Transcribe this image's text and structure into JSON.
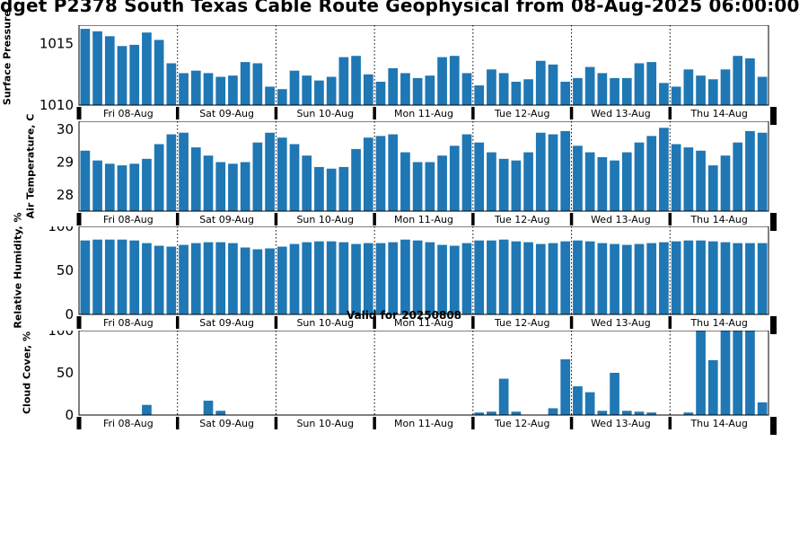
{
  "figure": {
    "title": "dget P2378 South Texas Cable Route Geophysical from 08-Aug-2025 06:00:00",
    "annotation": "Valid for 20250808",
    "bar_color": "#1f77b4"
  },
  "chart_data": [
    {
      "type": "bar",
      "title": "",
      "xlabel": "",
      "ylabel": "Surface Pressure,",
      "ylim": [
        1010,
        1016.5
      ],
      "yticks": [
        1010,
        1015
      ],
      "categories": [
        "Fri 08-Aug",
        "Sat 09-Aug",
        "Sun 10-Aug",
        "Mon 11-Aug",
        "Tue 12-Aug",
        "Wed 13-Aug",
        "Thu 14-Aug"
      ],
      "values": [
        1016.2,
        1016.0,
        1015.6,
        1014.8,
        1014.9,
        1015.9,
        1015.3,
        1013.4,
        1012.6,
        1012.8,
        1012.6,
        1012.3,
        1012.4,
        1013.5,
        1013.4,
        1011.5,
        1011.3,
        1012.8,
        1012.4,
        1012.0,
        1012.3,
        1013.9,
        1014.0,
        1012.5,
        1011.9,
        1013.0,
        1012.6,
        1012.2,
        1012.4,
        1013.9,
        1014.0,
        1012.6,
        1011.6,
        1012.9,
        1012.6,
        1011.9,
        1012.1,
        1013.6,
        1013.3,
        1011.9,
        1012.2,
        1013.1,
        1012.6,
        1012.2,
        1012.2,
        1013.4,
        1013.5,
        1011.8,
        1011.5,
        1012.9,
        1012.4,
        1012.1,
        1012.9,
        1014.0,
        1013.8,
        1012.3
      ]
    },
    {
      "type": "bar",
      "title": "",
      "xlabel": "",
      "ylabel": "Air Temperature, C",
      "ylim": [
        27.5,
        30.25
      ],
      "yticks": [
        28,
        29,
        30
      ],
      "categories": [
        "Fri 08-Aug",
        "Sat 09-Aug",
        "Sun 10-Aug",
        "Mon 11-Aug",
        "Tue 12-Aug",
        "Wed 13-Aug",
        "Thu 14-Aug"
      ],
      "values": [
        29.35,
        29.05,
        28.95,
        28.9,
        28.95,
        29.1,
        29.55,
        29.85,
        29.9,
        29.45,
        29.2,
        29.0,
        28.95,
        29.0,
        29.6,
        29.9,
        29.75,
        29.55,
        29.2,
        28.85,
        28.8,
        28.85,
        29.4,
        29.75,
        29.8,
        29.85,
        29.3,
        29.0,
        29.0,
        29.2,
        29.5,
        29.85,
        29.6,
        29.3,
        29.1,
        29.05,
        29.3,
        29.9,
        29.85,
        29.95,
        29.5,
        29.3,
        29.15,
        29.05,
        29.3,
        29.6,
        29.8,
        30.05,
        29.55,
        29.45,
        29.35,
        28.9,
        29.2,
        29.6,
        29.95,
        29.9
      ]
    },
    {
      "type": "bar",
      "title": "",
      "xlabel": "",
      "ylabel": "Relative Humidity, %",
      "ylim": [
        0,
        100
      ],
      "yticks": [
        0,
        50,
        100
      ],
      "categories": [
        "Fri 08-Aug",
        "Sat 09-Aug",
        "Sun 10-Aug",
        "Mon 11-Aug",
        "Tue 12-Aug",
        "Wed 13-Aug",
        "Thu 14-Aug"
      ],
      "values": [
        84,
        85,
        85,
        85,
        84,
        81,
        78,
        77,
        79,
        81,
        82,
        82,
        81,
        76,
        74,
        75,
        77,
        80,
        82,
        83,
        83,
        82,
        80,
        81,
        81,
        82,
        85,
        84,
        82,
        79,
        78,
        81,
        84,
        84,
        85,
        83,
        82,
        80,
        81,
        83,
        84,
        83,
        81,
        80,
        79,
        80,
        81,
        82,
        83,
        84,
        84,
        83,
        82,
        81,
        81,
        81
      ]
    },
    {
      "type": "bar",
      "title": "",
      "xlabel": "",
      "ylabel": "Cloud Cover, %",
      "ylim": [
        0,
        100
      ],
      "yticks": [
        0,
        50,
        100
      ],
      "categories": [
        "Fri 08-Aug",
        "Sat 09-Aug",
        "Sun 10-Aug",
        "Mon 11-Aug",
        "Tue 12-Aug",
        "Wed 13-Aug",
        "Thu 14-Aug"
      ],
      "values": [
        0,
        0,
        0,
        0,
        0,
        12,
        0,
        0,
        0,
        0,
        17,
        5,
        0,
        0,
        0,
        0,
        0,
        0,
        0,
        0,
        0,
        0,
        0,
        0,
        0,
        0,
        0,
        0,
        0,
        0,
        0,
        0,
        3,
        4,
        43,
        4,
        0,
        0,
        8,
        66,
        34,
        27,
        5,
        50,
        5,
        4,
        3,
        0,
        0,
        3,
        100,
        65,
        100,
        100,
        100,
        15
      ]
    }
  ]
}
